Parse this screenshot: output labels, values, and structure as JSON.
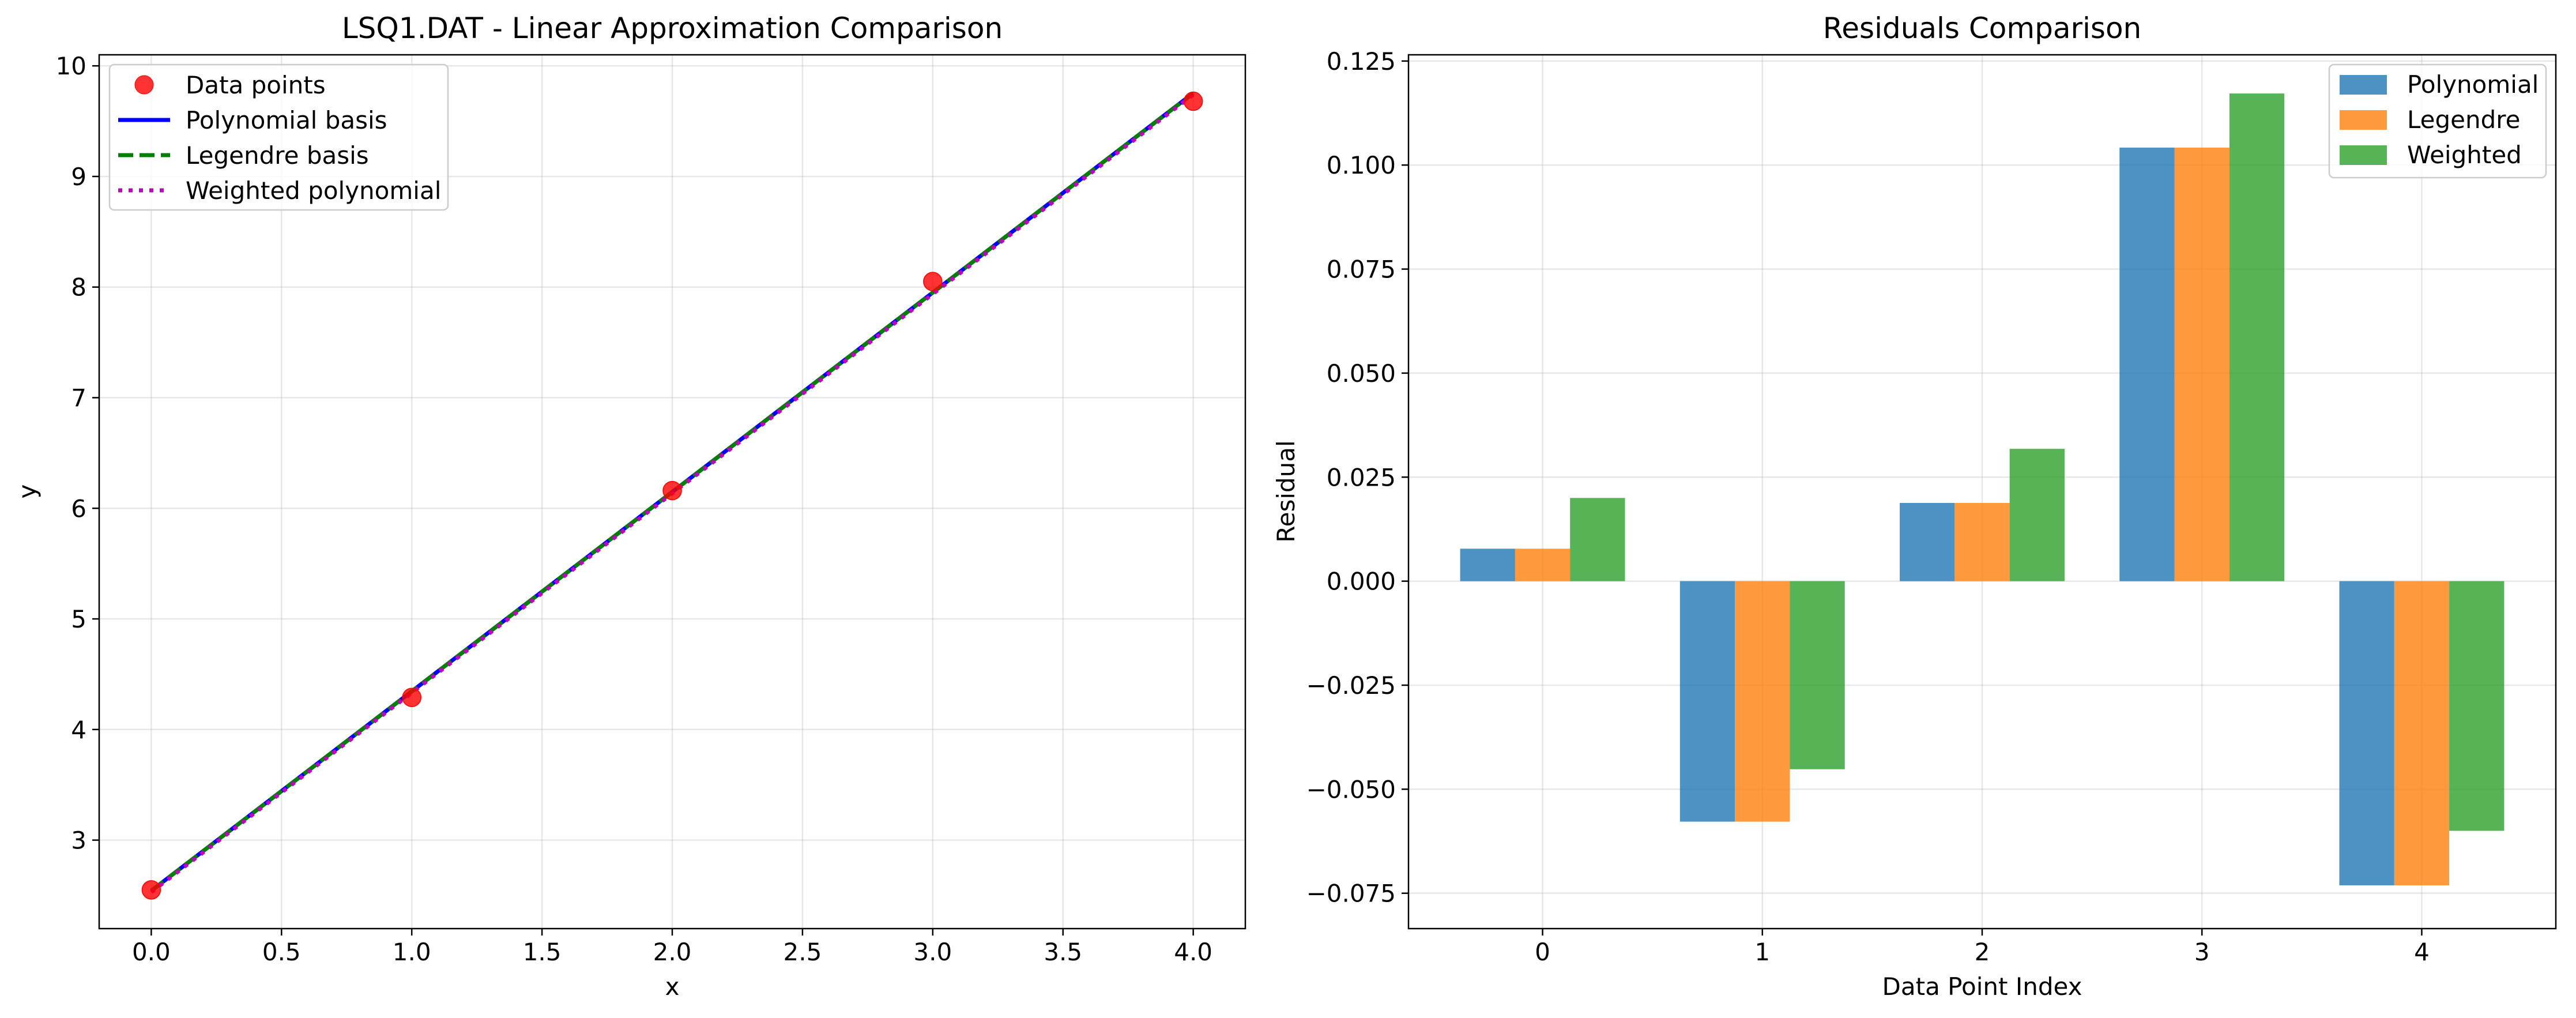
{
  "chart_data": [
    {
      "type": "scatter",
      "title": "LSQ1.DAT - Linear Approximation Comparison",
      "xlabel": "x",
      "ylabel": "y",
      "xlim": [
        -0.2,
        4.2
      ],
      "ylim": [
        2.2,
        10.1
      ],
      "grid": true,
      "legend_position": "top-left",
      "xticks": [
        "0.0",
        "0.5",
        "1.0",
        "1.5",
        "2.0",
        "2.5",
        "3.0",
        "3.5",
        "4.0"
      ],
      "xtick_values": [
        0,
        0.5,
        1,
        1.5,
        2,
        2.5,
        3,
        3.5,
        4
      ],
      "yticks": [
        "3",
        "4",
        "5",
        "6",
        "7",
        "8",
        "9",
        "10"
      ],
      "ytick_values": [
        3,
        4,
        5,
        6,
        7,
        8,
        9,
        10
      ],
      "points": {
        "name": "Data points",
        "color": "#ff0000",
        "x": [
          0,
          1,
          2,
          3,
          4
        ],
        "y": [
          2.55,
          4.29,
          6.16,
          8.05,
          9.68
        ]
      },
      "lines": [
        {
          "name": "Polynomial basis",
          "color": "#0000ff",
          "style": "solid",
          "x": [
            0,
            4
          ],
          "y": [
            2.542,
            9.753
          ]
        },
        {
          "name": "Legendre basis",
          "color": "#008000",
          "style": "dashed",
          "x": [
            0,
            4
          ],
          "y": [
            2.542,
            9.753
          ]
        },
        {
          "name": "Weighted polynomial",
          "color": "#bf00bf",
          "style": "dotted",
          "x": [
            0,
            4
          ],
          "y": [
            2.53,
            9.74
          ]
        }
      ]
    },
    {
      "type": "bar",
      "title": "Residuals Comparison",
      "xlabel": "Data Point Index",
      "ylabel": "Residual",
      "ylim": [
        -0.0835,
        0.1265
      ],
      "grid": true,
      "legend_position": "top-right",
      "categories": [
        "0",
        "1",
        "2",
        "3",
        "4"
      ],
      "yticks": [
        "−0.075",
        "−0.050",
        "−0.025",
        "0.000",
        "0.025",
        "0.050",
        "0.075",
        "0.100",
        "0.125"
      ],
      "ytick_values": [
        -0.075,
        -0.05,
        -0.025,
        0,
        0.025,
        0.05,
        0.075,
        0.1,
        0.125
      ],
      "series": [
        {
          "name": "Polynomial",
          "color": "#1f77b4",
          "values": [
            0.0078,
            -0.0578,
            0.0188,
            0.1042,
            -0.0731
          ]
        },
        {
          "name": "Legendre",
          "color": "#ff7f0e",
          "values": [
            0.0078,
            -0.0578,
            0.0188,
            0.1042,
            -0.0731
          ]
        },
        {
          "name": "Weighted",
          "color": "#2ca02c",
          "values": [
            0.02,
            -0.0452,
            0.0318,
            0.1172,
            -0.06
          ]
        }
      ]
    }
  ]
}
